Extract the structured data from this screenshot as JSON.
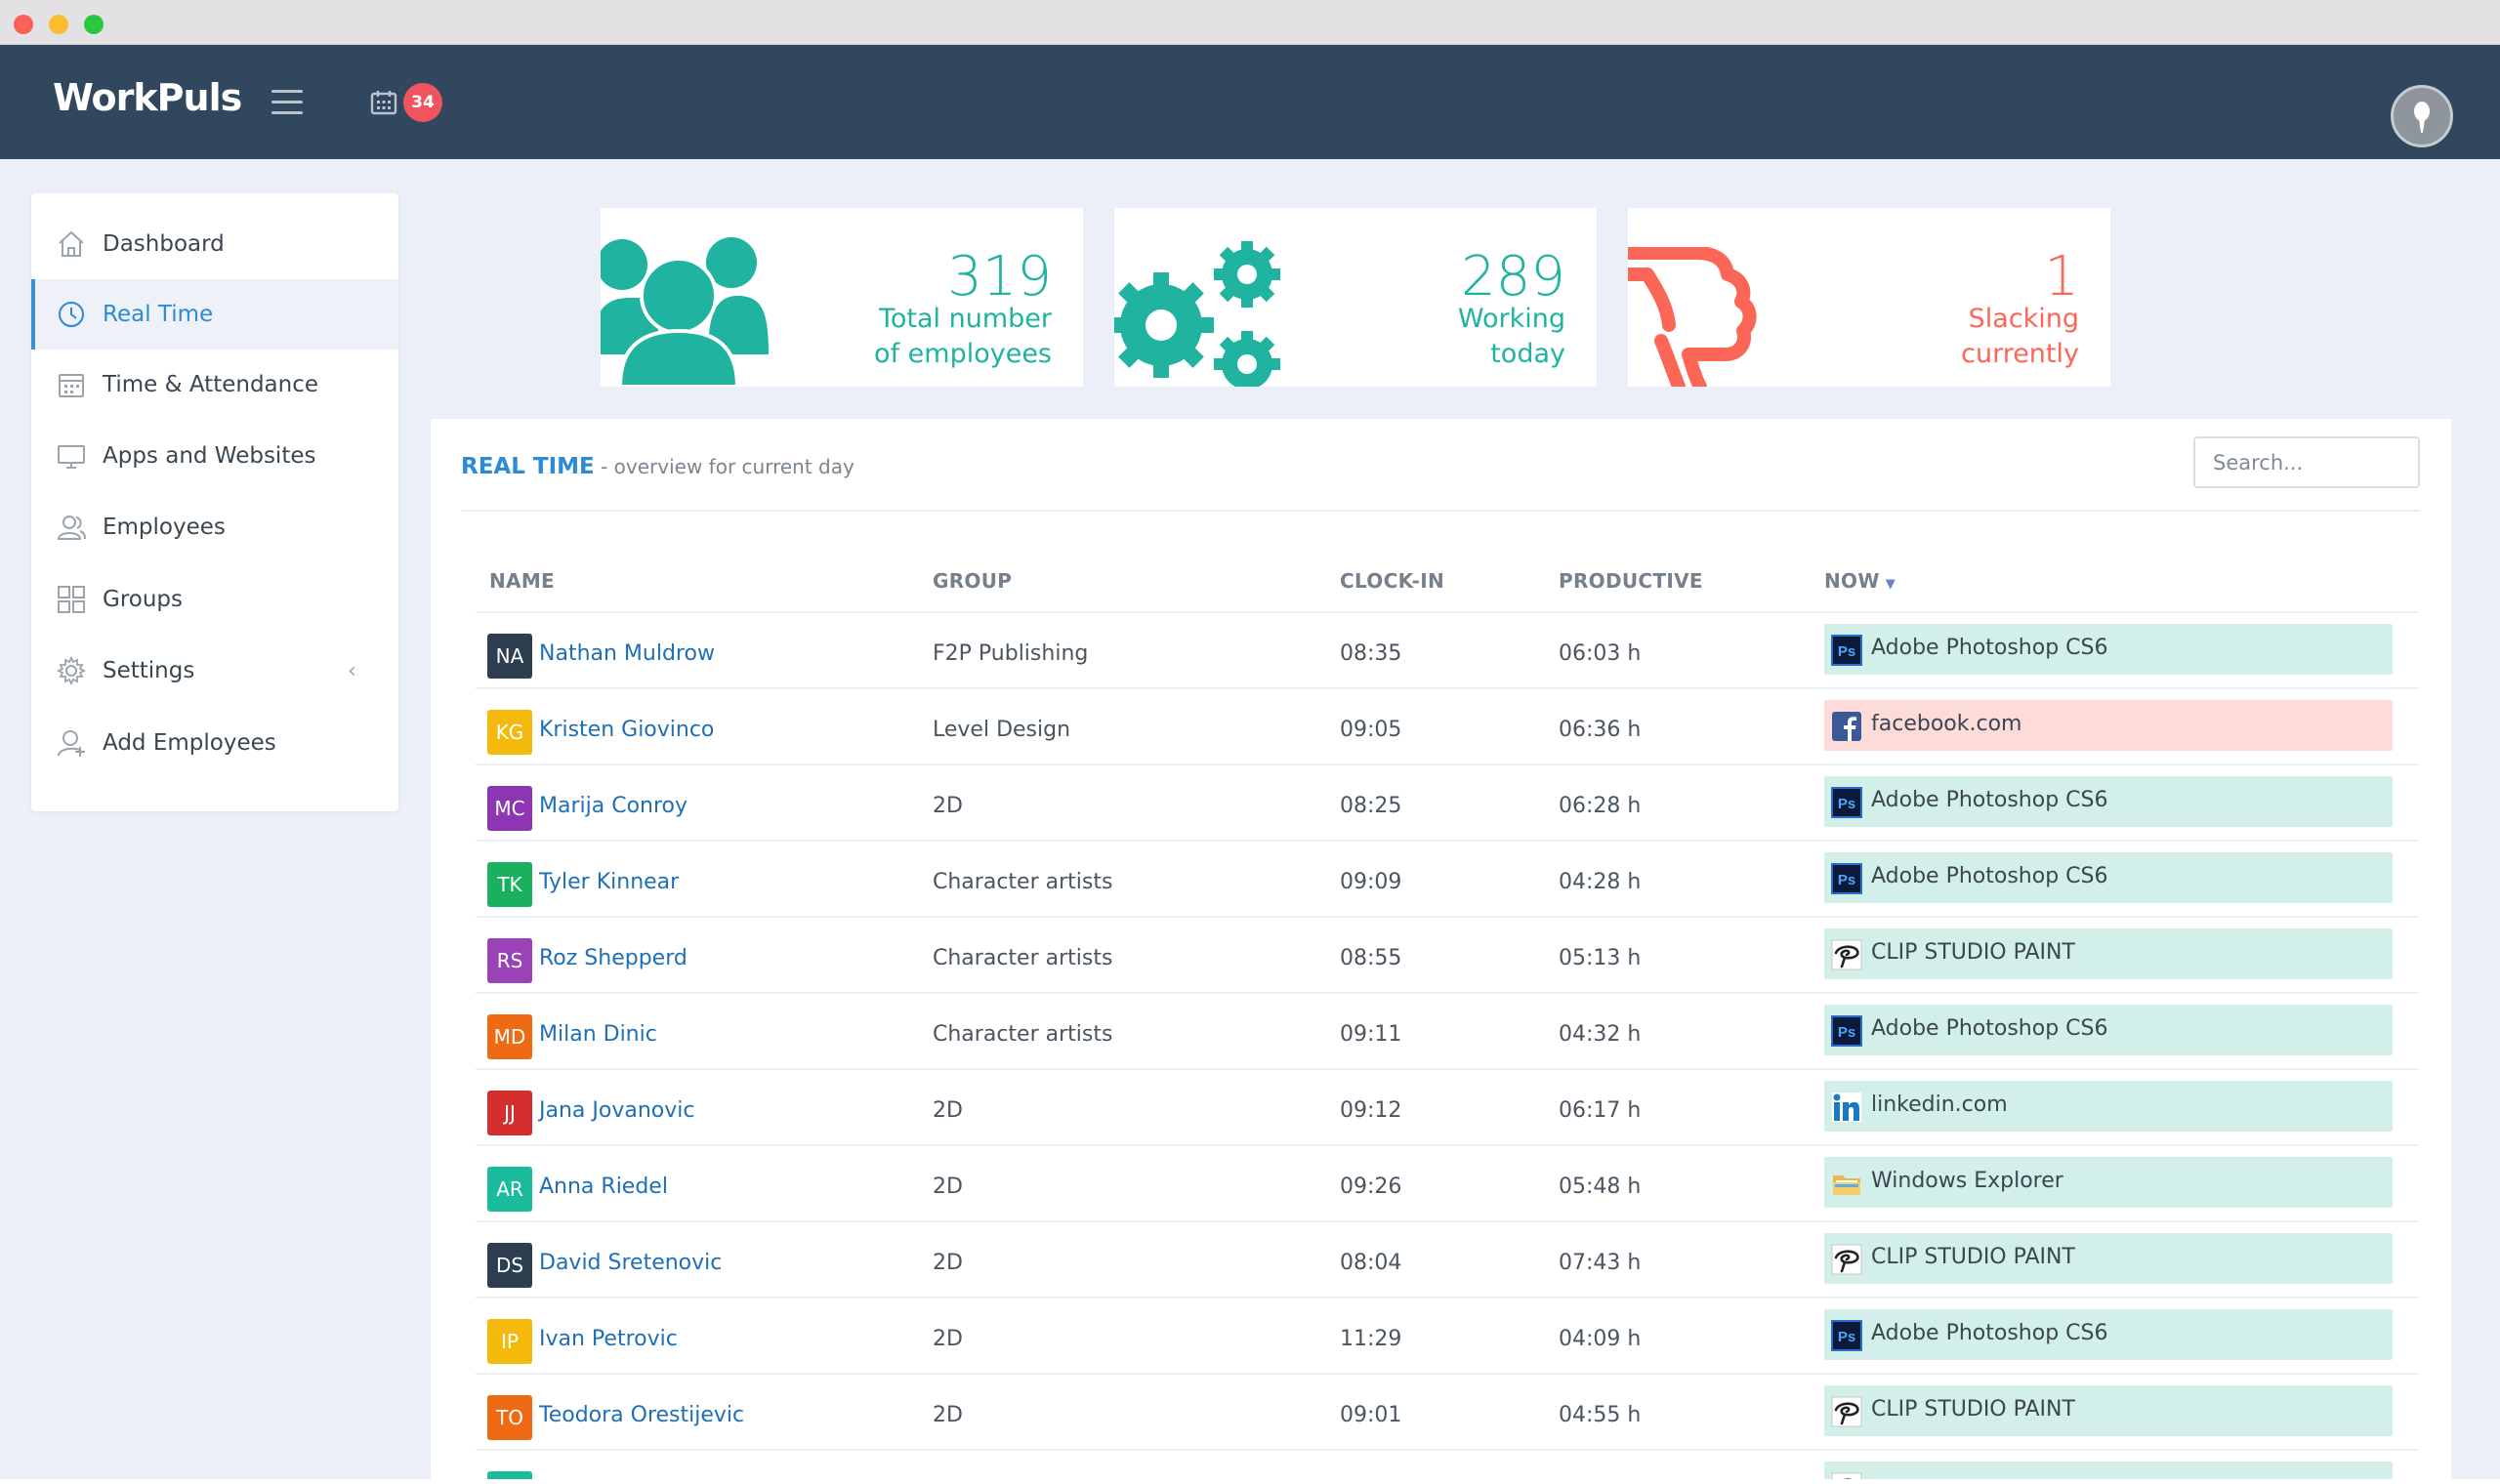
{
  "app": {
    "logo": "WorkPuls",
    "notification_count": "34"
  },
  "sidebar": {
    "items": [
      {
        "label": "Dashboard",
        "icon": "home-icon",
        "active": false
      },
      {
        "label": "Real Time",
        "icon": "clock-icon",
        "active": true
      },
      {
        "label": "Time & Attendance",
        "icon": "calendar-icon",
        "active": false
      },
      {
        "label": "Apps and Websites",
        "icon": "monitor-icon",
        "active": false
      },
      {
        "label": "Employees",
        "icon": "users-icon",
        "active": false
      },
      {
        "label": "Groups",
        "icon": "grid-icon",
        "active": false
      },
      {
        "label": "Settings",
        "icon": "gear-icon",
        "active": false
      },
      {
        "label": "Add Employees",
        "icon": "add-user-icon",
        "active": false
      }
    ]
  },
  "stats": [
    {
      "value": "319",
      "line1": "Total number",
      "line2": "of employees",
      "color": "#1fb3a0",
      "icon": "people-icon"
    },
    {
      "value": "289",
      "line1": "Working",
      "line2": "today",
      "color": "#1fb3a0",
      "icon": "gears-icon"
    },
    {
      "value": "1",
      "line1": "Slacking",
      "line2": "currently",
      "color": "#fb6656",
      "icon": "thumbs-down-icon"
    }
  ],
  "panel": {
    "title": "REAL TIME",
    "subtitle": " - overview for current day",
    "search_placeholder": "Search..."
  },
  "table": {
    "headers": {
      "name": "NAME",
      "group": "GROUP",
      "clockin": "CLOCK-IN",
      "productive": "PRODUCTIVE",
      "now": "NOW"
    },
    "rows": [
      {
        "initials": "NA",
        "color": "#2c3e50",
        "name": "Nathan Muldrow",
        "group": "F2P Publishing",
        "clockin": "08:35",
        "productive": "06:03 h",
        "app": "Adobe Photoshop CS6",
        "app_icon": "photoshop-icon",
        "status": "productive"
      },
      {
        "initials": "KG",
        "color": "#f5b90c",
        "name": "Kristen Giovinco",
        "group": "Level Design",
        "clockin": "09:05",
        "productive": "06:36 h",
        "app": "facebook.com",
        "app_icon": "facebook-icon",
        "status": "unproductive"
      },
      {
        "initials": "MC",
        "color": "#8e35b3",
        "name": "Marija Conroy",
        "group": "2D",
        "clockin": "08:25",
        "productive": "06:28 h",
        "app": "Adobe Photoshop CS6",
        "app_icon": "photoshop-icon",
        "status": "productive"
      },
      {
        "initials": "TK",
        "color": "#19b15e",
        "name": "Tyler Kinnear",
        "group": "Character artists",
        "clockin": "09:09",
        "productive": "04:28 h",
        "app": "Adobe Photoshop CS6",
        "app_icon": "photoshop-icon",
        "status": "productive"
      },
      {
        "initials": "RS",
        "color": "#9a43b8",
        "name": "Roz Shepperd",
        "group": "Character artists",
        "clockin": "08:55",
        "productive": "05:13 h",
        "app": "CLIP STUDIO PAINT",
        "app_icon": "clip-studio-icon",
        "status": "productive"
      },
      {
        "initials": "MD",
        "color": "#f06a13",
        "name": "Milan Dinic",
        "group": "Character artists",
        "clockin": "09:11",
        "productive": "04:32 h",
        "app": "Adobe Photoshop CS6",
        "app_icon": "photoshop-icon",
        "status": "productive"
      },
      {
        "initials": "JJ",
        "color": "#d32f2f",
        "name": "Jana Jovanovic",
        "group": "2D",
        "clockin": "09:12",
        "productive": "06:17 h",
        "app": "linkedin.com",
        "app_icon": "linkedin-icon",
        "status": "productive"
      },
      {
        "initials": "AR",
        "color": "#1abc9c",
        "name": "Anna Riedel",
        "group": "2D",
        "clockin": "09:26",
        "productive": "05:48 h",
        "app": "Windows Explorer",
        "app_icon": "folder-icon",
        "status": "productive"
      },
      {
        "initials": "DS",
        "color": "#2c3e50",
        "name": "David Sretenovic",
        "group": "2D",
        "clockin": "08:04",
        "productive": "07:43 h",
        "app": "CLIP STUDIO PAINT",
        "app_icon": "clip-studio-icon",
        "status": "productive"
      },
      {
        "initials": "IP",
        "color": "#f5b90c",
        "name": "Ivan Petrovic",
        "group": "2D",
        "clockin": "11:29",
        "productive": "04:09 h",
        "app": "Adobe Photoshop CS6",
        "app_icon": "photoshop-icon",
        "status": "productive"
      },
      {
        "initials": "TO",
        "color": "#f06a13",
        "name": "Teodora Orestijevic",
        "group": "2D",
        "clockin": "09:01",
        "productive": "04:55 h",
        "app": "CLIP STUDIO PAINT",
        "app_icon": "clip-studio-icon",
        "status": "productive"
      },
      {
        "initials": "",
        "color": "#1abc9c",
        "name": "",
        "group": "",
        "clockin": "",
        "productive": "",
        "app": "",
        "app_icon": "clip-studio-icon",
        "status": "productive"
      }
    ]
  }
}
